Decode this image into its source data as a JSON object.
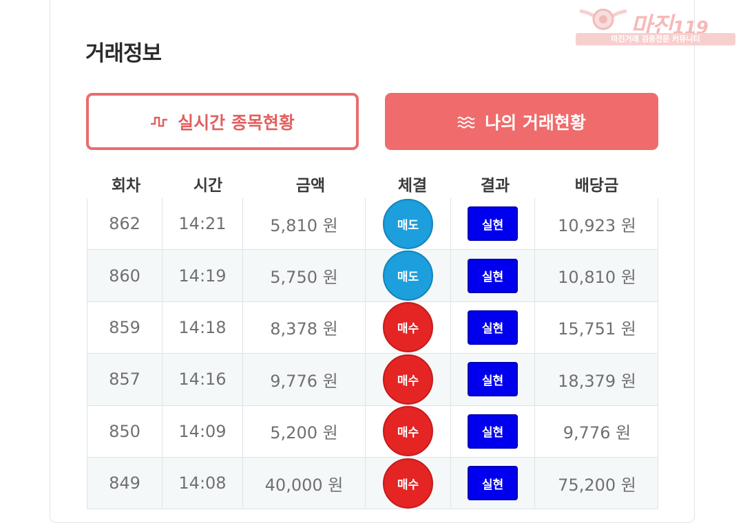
{
  "title": "거래정보",
  "buttons": {
    "live": {
      "label": "실시간 종목현황",
      "icon": "pulse-icon"
    },
    "mine": {
      "label": "나의 거래현황",
      "icon": "waves-icon"
    }
  },
  "columns": [
    "회차",
    "시간",
    "금액",
    "체결",
    "결과",
    "배당금"
  ],
  "rows": [
    {
      "round": "862",
      "time": "14:21",
      "amount": "5,810 원",
      "type": "매도",
      "result": "실현",
      "payout": "10,923 원"
    },
    {
      "round": "860",
      "time": "14:19",
      "amount": "5,750 원",
      "type": "매도",
      "result": "실현",
      "payout": "10,810 원"
    },
    {
      "round": "859",
      "time": "14:18",
      "amount": "8,378 원",
      "type": "매수",
      "result": "실현",
      "payout": "15,751 원"
    },
    {
      "round": "857",
      "time": "14:16",
      "amount": "9,776 원",
      "type": "매수",
      "result": "실현",
      "payout": "18,379 원"
    },
    {
      "round": "850",
      "time": "14:09",
      "amount": "5,200 원",
      "type": "매수",
      "result": "실현",
      "payout": "9,776 원"
    },
    {
      "round": "849",
      "time": "14:08",
      "amount": "40,000 원",
      "type": "매수",
      "result": "실현",
      "payout": "75,200 원"
    }
  ],
  "watermark": {
    "text": "마진",
    "suffix": "119",
    "subtitle": "마진거래 검증전문 커뮤니티"
  },
  "colors": {
    "accent": "#f06b6b",
    "sell": "#1c9fdc",
    "buy": "#e52424",
    "result": "#0000ee"
  }
}
